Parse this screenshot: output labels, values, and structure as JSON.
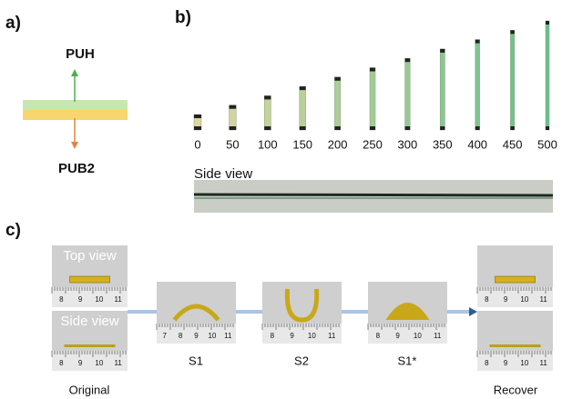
{
  "panel_a": {
    "label": "a)",
    "top": "PUH",
    "bottom": "PUB2"
  },
  "panel_b": {
    "label": "b)",
    "strains": [
      "0",
      "50",
      "100",
      "150",
      "200",
      "250",
      "300",
      "350",
      "400",
      "450",
      "500"
    ],
    "side_view": "Side view"
  },
  "panel_c": {
    "label": "c)",
    "original": {
      "top_view": "Top view",
      "side_view": "Side view",
      "caption": "Original",
      "ruler": [
        "8",
        "9",
        "10",
        "11"
      ]
    },
    "stages": [
      {
        "caption": "S1",
        "ruler": [
          "7",
          "8",
          "9",
          "10",
          "11"
        ]
      },
      {
        "caption": "S2",
        "ruler": [
          "8",
          "9",
          "10",
          "11"
        ]
      },
      {
        "caption": "S1*",
        "ruler": [
          "8",
          "9",
          "10",
          "11"
        ]
      }
    ],
    "recover": {
      "caption": "Recover",
      "ruler": [
        "8",
        "9",
        "10",
        "11"
      ]
    }
  }
}
